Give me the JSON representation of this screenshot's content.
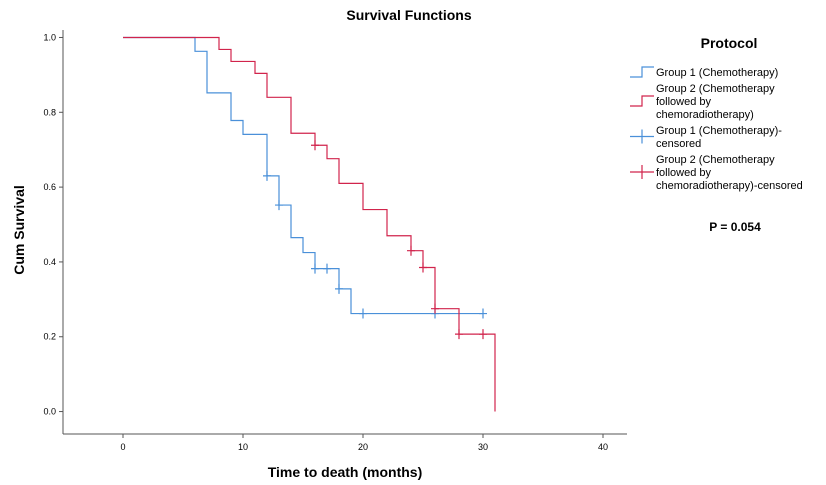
{
  "chart_data": {
    "type": "line",
    "title": "Survival Functions",
    "xlabel": "Time to death (months)",
    "ylabel": "Cum Survival",
    "xlim": [
      -5,
      42
    ],
    "ylim": [
      -0.06,
      1.02
    ],
    "x_ticks": [
      "0",
      "10",
      "20",
      "30",
      "40"
    ],
    "y_ticks": [
      "0.0",
      "0.2",
      "0.4",
      "0.6",
      "0.8",
      "1.0"
    ],
    "grid": false,
    "legend_title": "Protocol",
    "legend": [
      {
        "lines": [
          "Group 1 (Chemotherapy)"
        ],
        "color": "#4a90d9",
        "marker": "step"
      },
      {
        "lines": [
          "Group 2 (Chemotherapy",
          "followed by",
          "chemoradiotherapy)"
        ],
        "color": "#d1244c",
        "marker": "step"
      },
      {
        "lines": [
          "Group 1 (Chemotherapy)-",
          "censored"
        ],
        "color": "#4a90d9",
        "marker": "plus"
      },
      {
        "lines": [
          "Group 2 (Chemotherapy",
          "followed by",
          "chemoradiotherapy)-censored"
        ],
        "color": "#d1244c",
        "marker": "plus"
      }
    ],
    "annotation": "P = 0.054",
    "series": [
      {
        "name": "Group 1 (Chemotherapy)",
        "color": "#4a90d9",
        "steps": [
          [
            0,
            1.0
          ],
          [
            6,
            0.963
          ],
          [
            7,
            0.852
          ],
          [
            9,
            0.778
          ],
          [
            10,
            0.741
          ],
          [
            12,
            0.63
          ],
          [
            13,
            0.552
          ],
          [
            14,
            0.465
          ],
          [
            15,
            0.425
          ],
          [
            16,
            0.382
          ],
          [
            18,
            0.328
          ],
          [
            19,
            0.262
          ],
          [
            30,
            0.262
          ]
        ],
        "censored": [
          [
            12,
            0.63
          ],
          [
            13,
            0.552
          ],
          [
            16,
            0.382
          ],
          [
            17,
            0.382
          ],
          [
            18,
            0.328
          ],
          [
            20,
            0.262
          ],
          [
            26,
            0.262
          ],
          [
            30,
            0.262
          ]
        ]
      },
      {
        "name": "Group 2 (Chemotherapy followed by chemoradiotherapy)",
        "color": "#d1244c",
        "steps": [
          [
            0,
            1.0
          ],
          [
            8,
            0.968
          ],
          [
            9,
            0.936
          ],
          [
            11,
            0.904
          ],
          [
            12,
            0.84
          ],
          [
            14,
            0.744
          ],
          [
            16,
            0.712
          ],
          [
            17,
            0.676
          ],
          [
            18,
            0.61
          ],
          [
            20,
            0.54
          ],
          [
            22,
            0.47
          ],
          [
            24,
            0.43
          ],
          [
            25,
            0.385
          ],
          [
            26,
            0.275
          ],
          [
            28,
            0.207
          ],
          [
            31,
            0.0
          ]
        ],
        "censored": [
          [
            16,
            0.712
          ],
          [
            24,
            0.43
          ],
          [
            25,
            0.385
          ],
          [
            26,
            0.275
          ],
          [
            28,
            0.207
          ],
          [
            30,
            0.207
          ]
        ]
      }
    ]
  }
}
